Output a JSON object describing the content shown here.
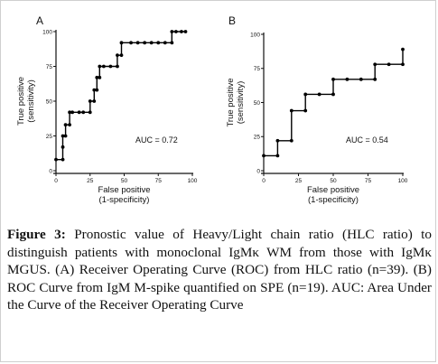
{
  "chart_data": [
    {
      "type": "line",
      "panel": "A",
      "xlabel": [
        "False positive",
        "(1-specificity)"
      ],
      "ylabel": [
        "True positive",
        "(sensitivity)"
      ],
      "xlim": [
        0,
        100
      ],
      "ylim": [
        0,
        100
      ],
      "xticks": [
        "0",
        "25",
        "50",
        "75",
        "100"
      ],
      "yticks": [
        "0",
        "25",
        "50",
        "75",
        "100"
      ],
      "annotation": "AUC = 0.72",
      "points": [
        [
          0,
          8
        ],
        [
          5,
          8
        ],
        [
          5,
          17
        ],
        [
          5,
          25
        ],
        [
          7,
          25
        ],
        [
          7,
          33
        ],
        [
          10,
          33
        ],
        [
          10,
          42
        ],
        [
          12,
          42
        ],
        [
          17,
          42
        ],
        [
          20,
          42
        ],
        [
          25,
          42
        ],
        [
          25,
          50
        ],
        [
          28,
          50
        ],
        [
          28,
          58
        ],
        [
          30,
          58
        ],
        [
          30,
          67
        ],
        [
          32,
          67
        ],
        [
          32,
          75
        ],
        [
          35,
          75
        ],
        [
          40,
          75
        ],
        [
          45,
          75
        ],
        [
          45,
          83
        ],
        [
          48,
          83
        ],
        [
          48,
          92
        ],
        [
          55,
          92
        ],
        [
          60,
          92
        ],
        [
          65,
          92
        ],
        [
          70,
          92
        ],
        [
          75,
          92
        ],
        [
          80,
          92
        ],
        [
          85,
          92
        ],
        [
          85,
          100
        ],
        [
          88,
          100
        ],
        [
          92,
          100
        ],
        [
          95,
          100
        ]
      ]
    },
    {
      "type": "line",
      "panel": "B",
      "xlabel": [
        "False positive",
        "(1-specificity)"
      ],
      "ylabel": [
        "True positive",
        "(sensitivity)"
      ],
      "xlim": [
        0,
        100
      ],
      "ylim": [
        0,
        100
      ],
      "xticks": [
        "0",
        "25",
        "50",
        "75",
        "100"
      ],
      "yticks": [
        "0",
        "25",
        "50",
        "75",
        "100"
      ],
      "annotation": "AUC = 0.54",
      "points": [
        [
          0,
          11
        ],
        [
          10,
          11
        ],
        [
          10,
          22
        ],
        [
          20,
          22
        ],
        [
          20,
          44
        ],
        [
          30,
          44
        ],
        [
          30,
          56
        ],
        [
          40,
          56
        ],
        [
          50,
          56
        ],
        [
          50,
          67
        ],
        [
          60,
          67
        ],
        [
          70,
          67
        ],
        [
          80,
          67
        ],
        [
          80,
          78
        ],
        [
          90,
          78
        ],
        [
          100,
          78
        ],
        [
          100,
          89
        ]
      ]
    }
  ],
  "caption": {
    "label": "Figure 3:",
    "text": " Pronostic value of Heavy/Light chain ratio (HLC ratio) to distinguish patients with monoclonal IgMκ WM from those with IgMκ MGUS. (A) Receiver Operating Curve (ROC) from HLC ratio (n=39). (B) ROC Curve from IgM M-spike quantified on SPE (n=19). AUC: Area Under the Curve of the Receiver Operating Curve"
  }
}
